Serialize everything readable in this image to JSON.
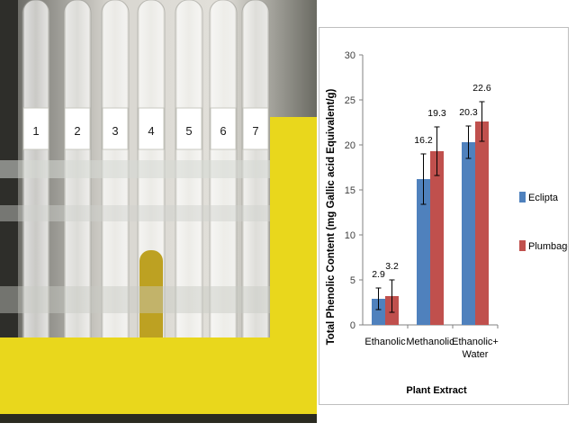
{
  "photo": {
    "tube_labels": [
      "1",
      "2",
      "3",
      "4",
      "5",
      "6",
      "7"
    ],
    "tube_colors": [
      "#4a4a2a",
      "#6b2a10",
      "#e8d84a",
      "#b89a10",
      "#7aa060",
      "#d8c070",
      "#2a2418"
    ],
    "rack_color": "#f2e21a"
  },
  "chart_data": {
    "type": "bar",
    "categories": [
      "Ethanolic",
      "Methanolic",
      "Ethanolic+ Water"
    ],
    "series": [
      {
        "name": "Eclipta",
        "values": [
          2.9,
          16.2,
          20.3
        ],
        "error": [
          1.2,
          2.8,
          1.8
        ],
        "color": "#4f81bd"
      },
      {
        "name": "Plumbago",
        "values": [
          3.2,
          19.3,
          22.6
        ],
        "error": [
          1.8,
          2.7,
          2.2
        ],
        "color": "#c0504d"
      }
    ],
    "data_labels": [
      [
        "2.9",
        "16.2",
        "20.3"
      ],
      [
        "3.2",
        "19.3",
        "22.6"
      ]
    ],
    "ylabel": "Total Phenolic Content (mg Gallic acid Equivalent/g)",
    "xlabel": "Plant Extract",
    "ylim": [
      0,
      30
    ],
    "yticks": [
      0,
      5,
      10,
      15,
      20,
      25,
      30
    ],
    "grid": false,
    "legend_position": "right"
  }
}
